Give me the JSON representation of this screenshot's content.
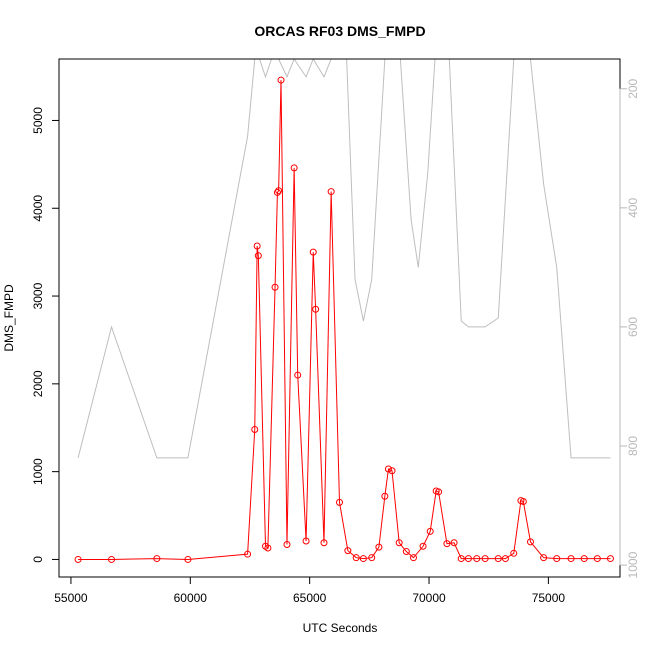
{
  "chart_data": {
    "type": "line",
    "title": "ORCAS RF03 DMS_FMPD",
    "xlabel": "UTC Seconds",
    "ylabel": "DMS_FMPD",
    "xlim": [
      54500,
      78000
    ],
    "ylim": [
      -200,
      5700
    ],
    "y2lim": [
      1020,
      150
    ],
    "y2_reversed": true,
    "xticks": [
      55000,
      60000,
      65000,
      70000,
      75000
    ],
    "xtick_labels": [
      "55000",
      "60000",
      "65000",
      "70000",
      75000
    ],
    "yticks": [
      0,
      1000,
      2000,
      3000,
      4000,
      5000
    ],
    "ytick_labels": [
      "0",
      "1000",
      "2000",
      "3000",
      "4000",
      "5000"
    ],
    "y2ticks": [
      200,
      400,
      600,
      800,
      1000
    ],
    "y2tick_labels": [
      "200",
      "400",
      "600",
      "800",
      "1000"
    ],
    "grid": false,
    "series": [
      {
        "axis": "left",
        "color": "#ff0000",
        "marker": "open-circle",
        "x": [
          55300,
          56700,
          58600,
          59900,
          62400,
          62700,
          62800,
          62850,
          63150,
          63250,
          63550,
          63650,
          63700,
          63800,
          64050,
          64350,
          64500,
          64850,
          65150,
          65250,
          65600,
          65900,
          66250,
          66600,
          66950,
          67250,
          67600,
          67900,
          68150,
          68300,
          68450,
          68750,
          69050,
          69350,
          69750,
          70050,
          70300,
          70400,
          70750,
          71050,
          71350,
          71650,
          72000,
          72350,
          72900,
          73200,
          73550,
          73850,
          73950,
          74250,
          74800,
          75350,
          75950,
          76500,
          77050,
          77600
        ],
        "y": [
          0,
          0,
          10,
          0,
          60,
          1480,
          3570,
          3460,
          150,
          130,
          3100,
          4180,
          4200,
          5460,
          170,
          4460,
          2100,
          210,
          3500,
          2850,
          190,
          4190,
          650,
          100,
          20,
          10,
          20,
          140,
          720,
          1030,
          1010,
          190,
          90,
          20,
          150,
          320,
          780,
          770,
          180,
          190,
          10,
          10,
          10,
          10,
          10,
          10,
          70,
          670,
          660,
          200,
          20,
          10,
          10,
          10,
          10,
          10
        ]
      },
      {
        "axis": "right",
        "color": "#bebebe",
        "marker": "none",
        "x": [
          55300,
          56700,
          58600,
          59900,
          62400,
          62700,
          62900,
          63150,
          63400,
          63700,
          64050,
          64350,
          64850,
          65150,
          65600,
          65900,
          66550,
          66900,
          67250,
          67600,
          68150,
          68450,
          68800,
          69250,
          69550,
          69950,
          70250,
          70500,
          70850,
          71350,
          71650,
          72350,
          72900,
          73550,
          73850,
          74250,
          74800,
          75350,
          75950,
          76500,
          77050,
          77600
        ],
        "y": [
          820,
          600,
          820,
          820,
          280,
          150,
          150,
          180,
          150,
          150,
          180,
          150,
          180,
          150,
          180,
          150,
          150,
          520,
          590,
          520,
          150,
          150,
          150,
          420,
          500,
          340,
          150,
          150,
          150,
          590,
          600,
          600,
          585,
          150,
          150,
          150,
          360,
          500,
          820,
          820,
          820,
          820
        ]
      }
    ]
  }
}
